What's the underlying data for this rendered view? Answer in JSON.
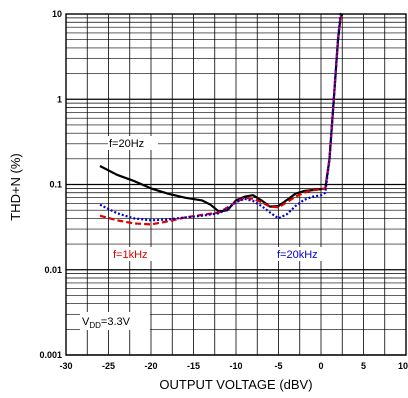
{
  "chart_data": {
    "type": "line",
    "xlabel": "OUTPUT VOLTAGE (dBV)",
    "ylabel": "THD+N (%)",
    "xlim": [
      -30,
      10
    ],
    "ylim": [
      0.001,
      10
    ],
    "yscale": "log",
    "grid": true,
    "x_ticks": [
      "-30",
      "-25",
      "-20",
      "-15",
      "-10",
      "-5",
      "0",
      "5",
      "10"
    ],
    "y_ticks": [
      "0.001",
      "0.01",
      "0.1",
      "1",
      "10"
    ],
    "series": [
      {
        "name": "f=20Hz",
        "color": "#000000",
        "style": "solid",
        "x": [
          -26,
          -24,
          -22,
          -20,
          -18,
          -16,
          -14,
          -13,
          -12,
          -11,
          -10,
          -9,
          -8,
          -7,
          -6,
          -5,
          -4,
          -3,
          -2,
          -1,
          0,
          0.5,
          1,
          1.5,
          2,
          2.3,
          2.5
        ],
        "y": [
          0.165,
          0.13,
          0.11,
          0.09,
          0.078,
          0.07,
          0.065,
          0.058,
          0.048,
          0.05,
          0.065,
          0.072,
          0.075,
          0.065,
          0.055,
          0.056,
          0.066,
          0.078,
          0.084,
          0.086,
          0.088,
          0.09,
          0.2,
          1,
          5,
          9,
          10
        ]
      },
      {
        "name": "f=1kHz",
        "color": "#e00000",
        "style": "dashed",
        "x": [
          -26,
          -24,
          -22,
          -20,
          -18,
          -16,
          -14,
          -12,
          -10,
          -9,
          -8,
          -7,
          -6,
          -5,
          -4,
          -3,
          -2,
          -1,
          0,
          0.5,
          1,
          1.5,
          2,
          2.3,
          2.5
        ],
        "y": [
          0.043,
          0.038,
          0.035,
          0.034,
          0.037,
          0.041,
          0.044,
          0.047,
          0.062,
          0.07,
          0.068,
          0.062,
          0.055,
          0.054,
          0.062,
          0.072,
          0.08,
          0.086,
          0.088,
          0.09,
          0.2,
          1,
          5,
          9,
          10
        ]
      },
      {
        "name": "f=20kHz",
        "color": "#0000d0",
        "style": "dotted",
        "x": [
          -26,
          -24,
          -22,
          -20,
          -18,
          -16,
          -14,
          -12,
          -11,
          -10,
          -9,
          -8,
          -7,
          -6,
          -5,
          -4,
          -3,
          -2,
          -1,
          0,
          0.5,
          1,
          1.5,
          2,
          2.3,
          2.5
        ],
        "y": [
          0.058,
          0.046,
          0.04,
          0.038,
          0.039,
          0.041,
          0.043,
          0.046,
          0.052,
          0.062,
          0.068,
          0.064,
          0.056,
          0.047,
          0.04,
          0.045,
          0.056,
          0.066,
          0.072,
          0.075,
          0.08,
          0.2,
          1,
          5,
          10,
          10
        ]
      }
    ],
    "annotations": {
      "f20hz": "f=20Hz",
      "f1khz": "f=1kHz",
      "f20khz": "f=20kHz",
      "vdd_main": "V",
      "vdd_sub": "DD",
      "vdd_value": "=3.3V"
    }
  }
}
